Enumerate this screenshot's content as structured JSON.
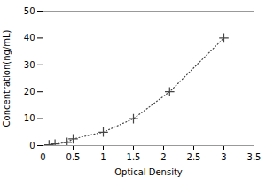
{
  "chart_data": {
    "type": "line",
    "xlabel": "Optical Density",
    "ylabel": "Concentration(ng/mL)",
    "x": [
      0.1,
      0.2,
      0.4,
      0.5,
      1.0,
      1.5,
      2.1,
      3.0
    ],
    "values": [
      0.3,
      0.6,
      1.2,
      2.5,
      5.0,
      10.0,
      20.0,
      40.0
    ],
    "xlim": [
      0,
      3.5
    ],
    "ylim": [
      0,
      50
    ],
    "xticks": [
      0,
      0.5,
      1.0,
      1.5,
      2.0,
      2.5,
      3.0,
      3.5
    ],
    "yticks": [
      0,
      10,
      20,
      30,
      40,
      50
    ],
    "color": "#444444",
    "marker": "+",
    "line_style": "dotted",
    "grid": false
  }
}
